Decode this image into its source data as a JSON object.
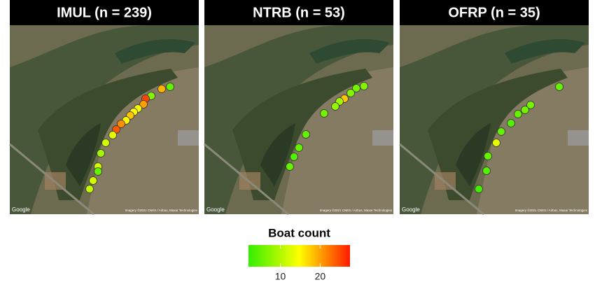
{
  "panels": [
    {
      "title": "IMUL (n = 239)",
      "values": [
        5,
        19,
        7,
        25,
        20,
        14,
        15,
        18,
        15,
        21,
        24,
        13,
        12,
        9,
        12,
        5,
        12,
        11
      ]
    },
    {
      "title": "NTRB (n = 53)",
      "values": [
        7,
        6,
        7,
        18,
        9,
        8,
        6,
        5,
        5,
        4,
        5
      ]
    },
    {
      "title": "OFRP (n = 35)",
      "values": [
        5,
        6,
        6,
        5,
        4,
        5,
        13,
        5,
        4,
        3
      ]
    }
  ],
  "attribution": {
    "google": "Google",
    "imagery": "Imagery ©2021 CNES / Airbus, Maxar Technologies"
  },
  "legend": {
    "title": "Boat count",
    "clim": [
      2,
      27.5
    ],
    "ticks": [
      10,
      20
    ],
    "colormap": [
      "#33ee00",
      "#ffff00",
      "#ff1a00"
    ]
  }
}
